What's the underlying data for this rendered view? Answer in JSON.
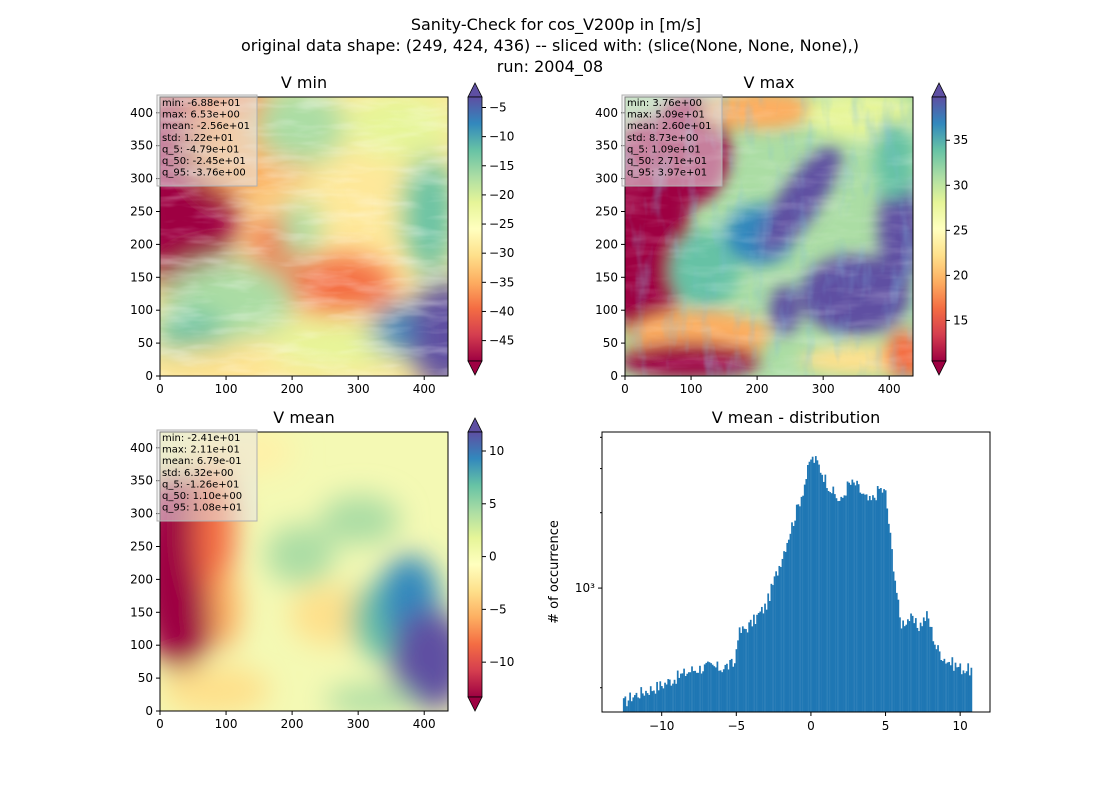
{
  "suptitle": [
    "Sanity-Check for cos_V200p in [m/s]",
    "original data shape: (249, 424, 436) -- sliced with: (slice(None, None, None),)",
    "run: 2004_08"
  ],
  "colors": {
    "histogram_bar": "#1f77b4",
    "colormap_stops": [
      "#9e0142",
      "#d53e4f",
      "#f46d43",
      "#fdae61",
      "#fee08b",
      "#ffffbf",
      "#e6f598",
      "#abdda4",
      "#66c2a5",
      "#3288bd",
      "#5e4fa2"
    ]
  },
  "chart_data": [
    {
      "type": "heatmap",
      "title": "V min",
      "colormap": "Spectral",
      "x_range": [
        0,
        436
      ],
      "y_range": [
        0,
        424
      ],
      "x_ticks": [
        0,
        100,
        200,
        300,
        400
      ],
      "y_ticks": [
        0,
        50,
        100,
        150,
        200,
        250,
        300,
        350,
        400
      ],
      "colorbar": {
        "range": [
          -48.5,
          -3.2
        ],
        "ticks": [
          -45,
          -40,
          -35,
          -30,
          -25,
          -20,
          -15,
          -10,
          -5
        ],
        "extend": "both"
      },
      "stats": [
        "min: -6.88e+01",
        "max: 6.53e+00",
        "mean: -2.56e+01",
        "std: 1.22e+01",
        "q_5: -4.79e+01",
        "q_50: -2.45e+01",
        "q_95: -3.76e+00"
      ]
    },
    {
      "type": "heatmap",
      "title": "V max",
      "colormap": "Spectral",
      "x_range": [
        0,
        436
      ],
      "y_range": [
        0,
        424
      ],
      "x_ticks": [
        0,
        100,
        200,
        300,
        400
      ],
      "y_ticks": [
        0,
        50,
        100,
        150,
        200,
        250,
        300,
        350,
        400
      ],
      "colorbar": {
        "range": [
          10.5,
          39.8
        ],
        "ticks": [
          15,
          20,
          25,
          30,
          35
        ],
        "extend": "both"
      },
      "stats": [
        "min: 3.76e+00",
        "max: 5.09e+01",
        "mean: 2.60e+01",
        "std: 8.73e+00",
        "q_5: 1.09e+01",
        "q_50: 2.71e+01",
        "q_95: 3.97e+01"
      ]
    },
    {
      "type": "heatmap",
      "title": "V mean",
      "colormap": "Spectral",
      "x_range": [
        0,
        436
      ],
      "y_range": [
        0,
        424
      ],
      "x_ticks": [
        0,
        100,
        200,
        300,
        400
      ],
      "y_ticks": [
        0,
        50,
        100,
        150,
        200,
        250,
        300,
        350,
        400
      ],
      "colorbar": {
        "range": [
          -13.3,
          11.8
        ],
        "ticks": [
          -10,
          -5,
          0,
          5,
          10
        ],
        "extend": "both"
      },
      "stats": [
        "min: -2.41e+01",
        "max: 2.11e+01",
        "mean: 6.79e-01",
        "std: 6.32e+00",
        "q_5: -1.26e+01",
        "q_50: 1.10e+00",
        "q_95: 1.08e+01"
      ]
    },
    {
      "type": "bar",
      "title": "V mean - distribution",
      "ylabel": "# of occurrence",
      "yscale": "log",
      "xlim": [
        -14,
        12
      ],
      "ylim": [
        320,
        4200
      ],
      "x_ticks": [
        -10,
        -5,
        0,
        5,
        10
      ],
      "x_tick_labels": [
        "−10",
        "−5",
        "0",
        "5",
        "10"
      ],
      "y_major_tick_label": "10³",
      "y_major_tick_value": 1000,
      "bin_range": [
        -12.6,
        10.8
      ],
      "knots_x": [
        -12.6,
        -12,
        -11,
        -10,
        -9,
        -8,
        -7,
        -6,
        -5.05,
        -4.95,
        -4,
        -3,
        -2,
        -1,
        -0.5,
        0,
        0.4,
        1,
        1.5,
        2,
        2.5,
        3,
        3.6,
        4,
        4.6,
        5,
        5.4,
        6,
        6.6,
        7.2,
        7.8,
        8.4,
        9,
        10,
        10.8
      ],
      "knots_y": [
        345,
        370,
        390,
        410,
        440,
        470,
        485,
        480,
        500,
        650,
        720,
        850,
        1300,
        2000,
        2500,
        3300,
        3200,
        2700,
        2400,
        2200,
        2600,
        2600,
        2300,
        2200,
        2500,
        2400,
        1450,
        720,
        760,
        700,
        780,
        580,
        520,
        480,
        470
      ]
    }
  ]
}
